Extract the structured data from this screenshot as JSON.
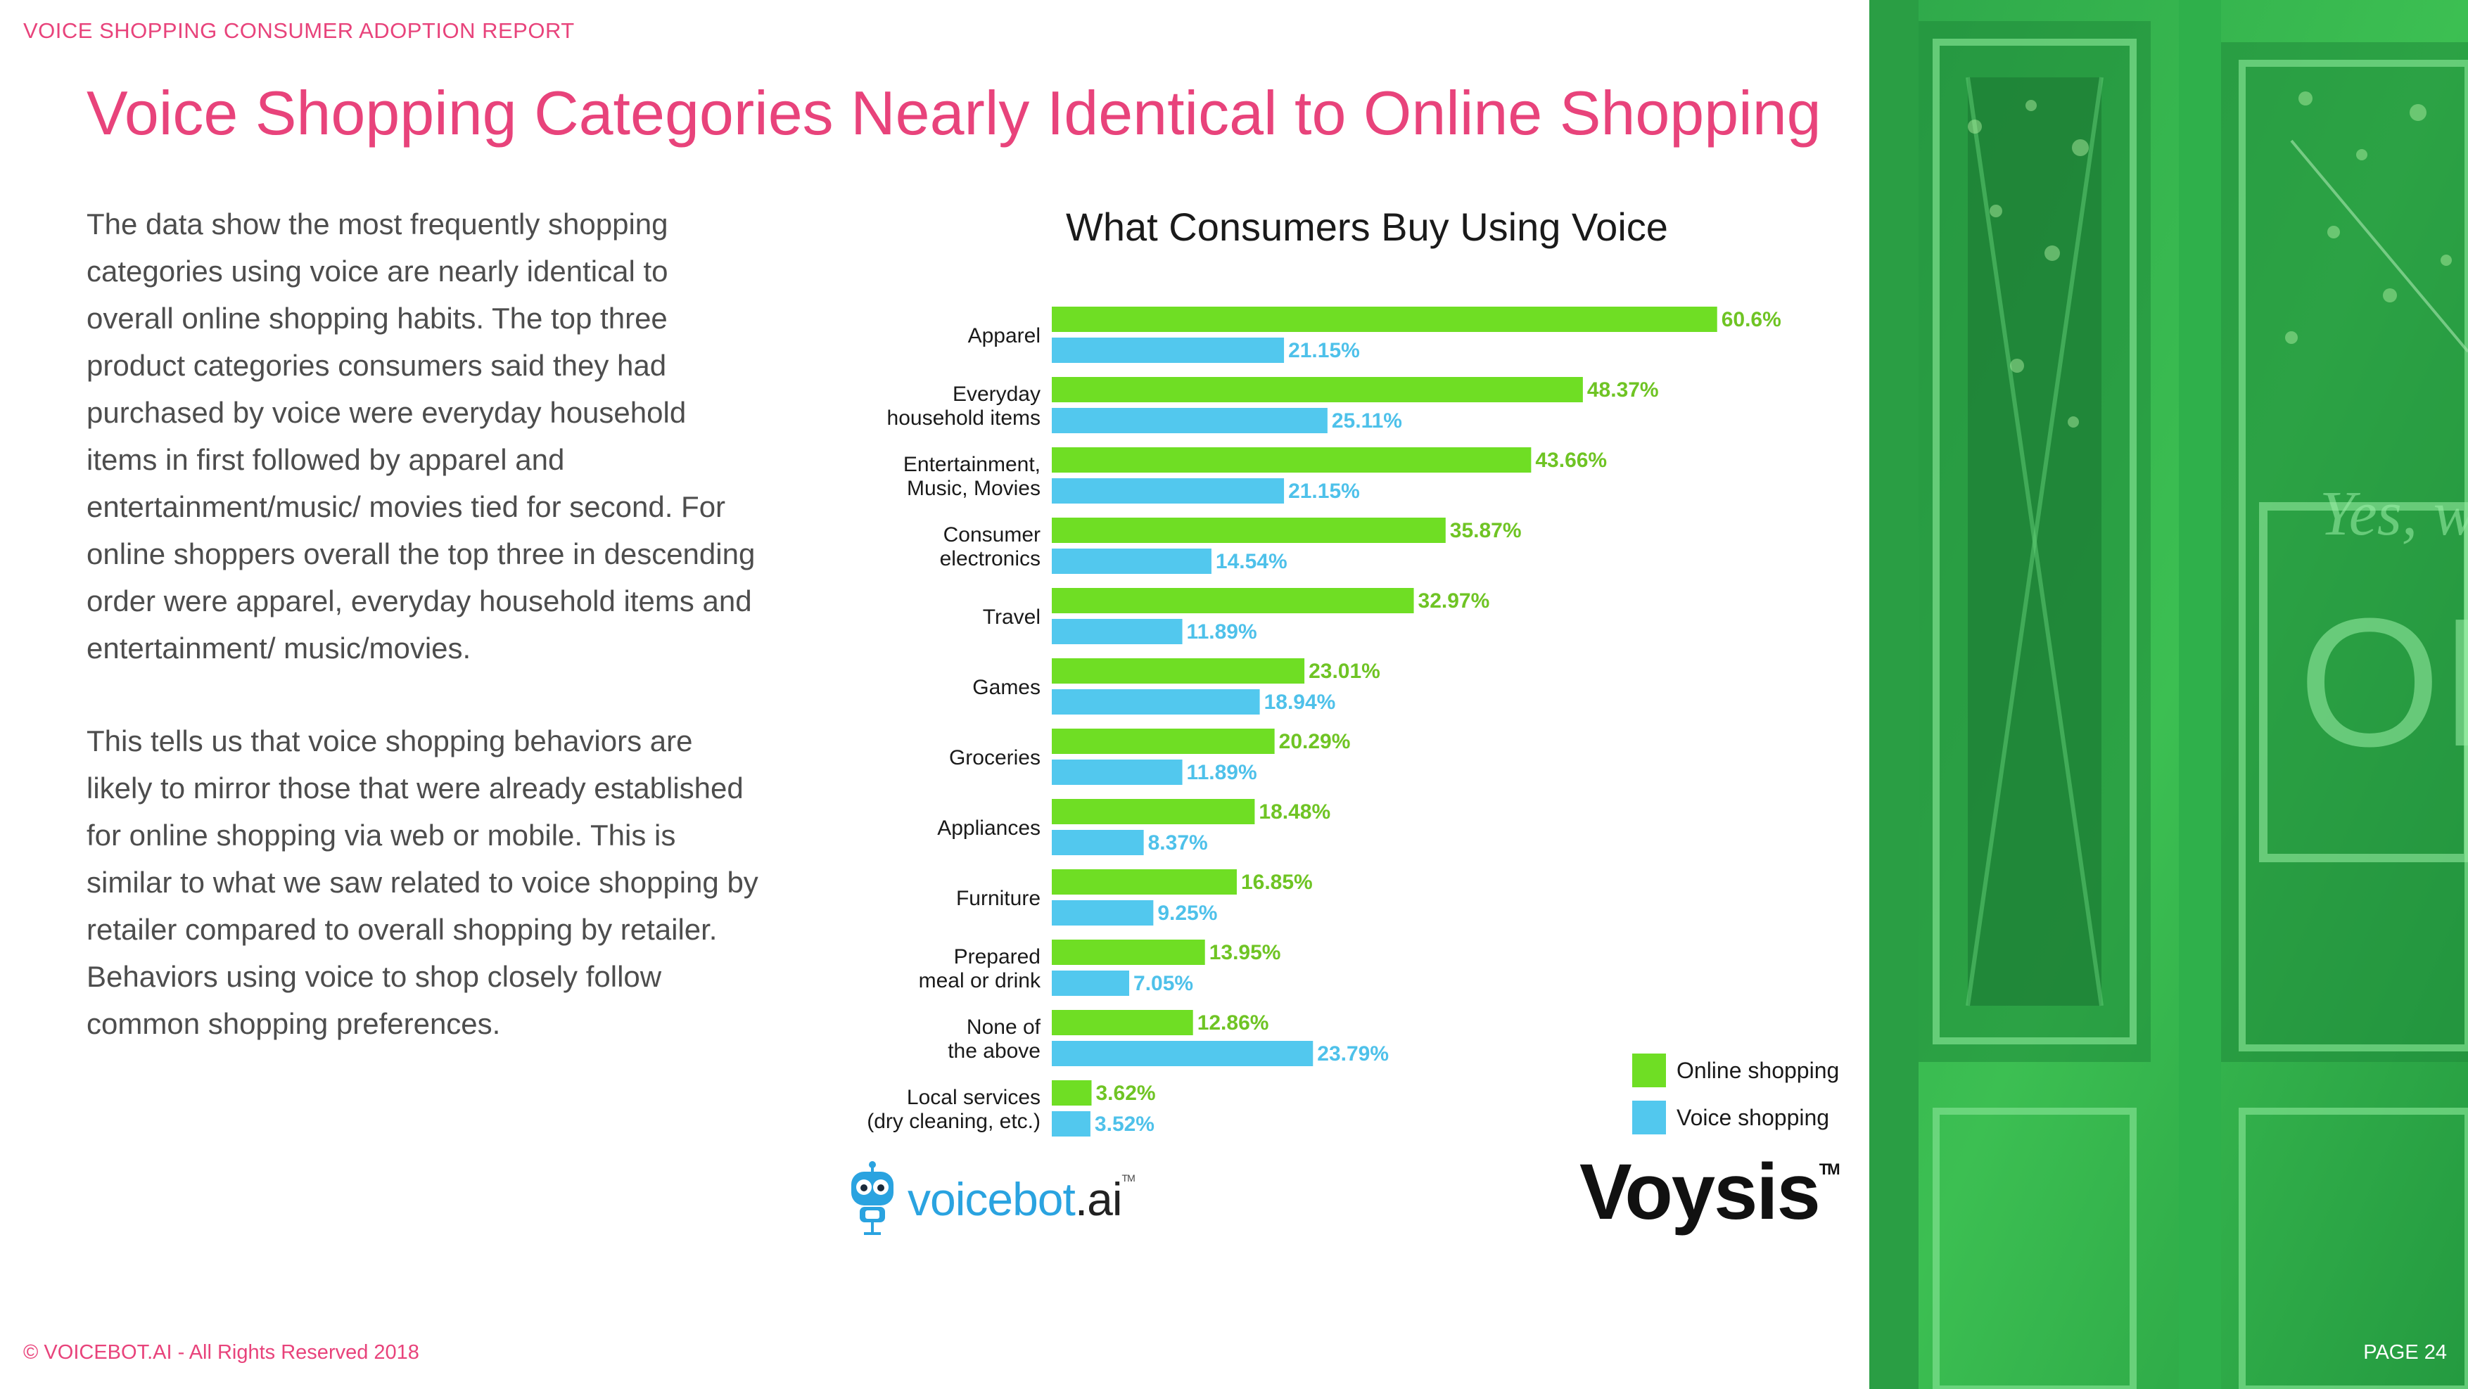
{
  "header": {
    "report_label": "VOICE SHOPPING CONSUMER ADOPTION REPORT",
    "title": "Voice Shopping Categories Nearly Identical to Online Shopping"
  },
  "body": {
    "paragraph_1": "The data show the most frequently shopping categories using voice are nearly identical to overall online shopping habits. The top three product categories consumers said they had purchased by voice were everyday household items in first followed by apparel and entertainment/music/ movies tied for second. For online shoppers overall the top three in descending order were apparel, everyday household items and entertainment/ music/movies.",
    "paragraph_2": "This tells us that voice shopping behaviors are likely to mirror those that were already established for online shopping via web or mobile. This is similar to what we saw related to voice shopping by retailer compared to overall shopping by retailer. Behaviors using voice to shop closely follow common shopping preferences."
  },
  "chart_data": {
    "type": "bar",
    "orientation": "horizontal",
    "title": "What Consumers Buy Using Voice",
    "categories": [
      [
        "Apparel"
      ],
      [
        "Everyday",
        "household items"
      ],
      [
        "Entertainment,",
        "Music, Movies"
      ],
      [
        "Consumer",
        "electronics"
      ],
      [
        "Travel"
      ],
      [
        "Games"
      ],
      [
        "Groceries"
      ],
      [
        "Appliances"
      ],
      [
        "Furniture"
      ],
      [
        "Prepared",
        "meal or drink"
      ],
      [
        "None of",
        "the above"
      ],
      [
        "Local services",
        "(dry cleaning, etc.)"
      ]
    ],
    "series": [
      {
        "name": "Online shopping",
        "color": "#6fde24",
        "label_color": "#6fc424",
        "values": [
          60.6,
          48.37,
          43.66,
          35.87,
          32.97,
          23.01,
          20.29,
          18.48,
          16.85,
          13.95,
          12.86,
          3.62
        ],
        "labels": [
          "60.6%",
          "48.37%",
          "43.66%",
          "35.87%",
          "32.97%",
          "23.01%",
          "20.29%",
          "18.48%",
          "16.85%",
          "13.95%",
          "12.86%",
          "3.62%"
        ]
      },
      {
        "name": "Voice shopping",
        "color": "#52c8ee",
        "label_color": "#4ec1ea",
        "values": [
          21.15,
          25.11,
          21.15,
          14.54,
          11.89,
          18.94,
          11.89,
          8.37,
          9.25,
          7.05,
          23.79,
          3.52
        ],
        "labels": [
          "21.15%",
          "25.11%",
          "21.15%",
          "14.54%",
          "11.89%",
          "18.94%",
          "11.89%",
          "8.37%",
          "9.25%",
          "7.05%",
          "23.79%",
          "3.52%"
        ]
      }
    ],
    "xlim": [
      0,
      66
    ],
    "legend": "bottom-right",
    "grid": false
  },
  "logos": {
    "voicebot_prefix": "voicebot",
    "voicebot_suffix": ".ai",
    "voicebot_tm": "TM",
    "voysis": "Voysis",
    "voysis_tm": "TM"
  },
  "footer": {
    "copyright": "© VOICEBOT.AI - All Rights Reserved 2018",
    "page": "PAGE 24"
  }
}
